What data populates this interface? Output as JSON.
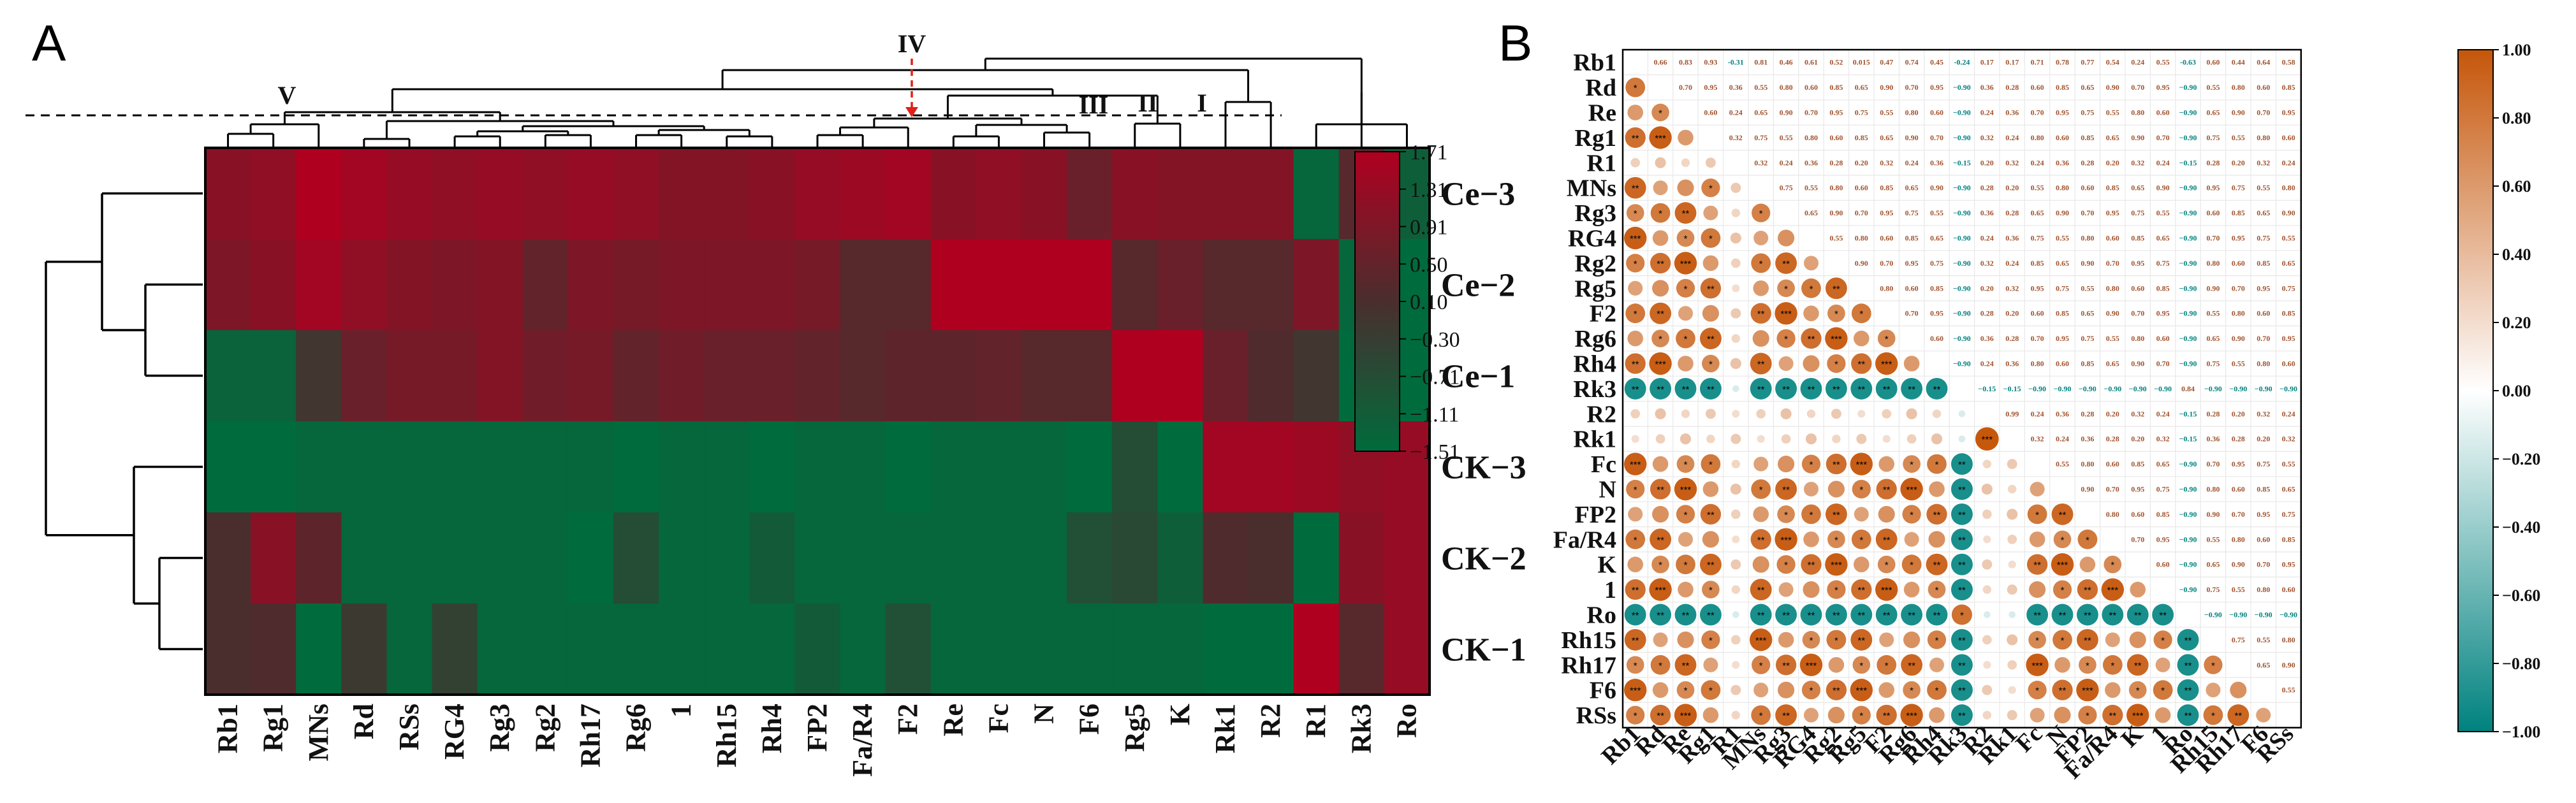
{
  "panels": {
    "a": "A",
    "b": "B"
  },
  "chart_data": [
    {
      "type": "heatmap",
      "panel": "A",
      "rows": [
        "Ce−3",
        "Ce−2",
        "Ce−1",
        "CK−3",
        "CK−2",
        "CK−1"
      ],
      "columns": [
        "Rb1",
        "Rg1",
        "MNs",
        "Rd",
        "RSs",
        "RG4",
        "Rg3",
        "Rg2",
        "Rh17",
        "Rg6",
        "1",
        "Rh15",
        "Rh4",
        "FP2",
        "Fa/R4",
        "F2",
        "Re",
        "Fc",
        "N",
        "F6",
        "Rg5",
        "K",
        "Rk1",
        "R2",
        "R1",
        "Rk3",
        "Ro"
      ],
      "values": [
        [
          1.1,
          1.2,
          1.71,
          1.5,
          1.3,
          1.2,
          1.3,
          1.2,
          1.3,
          1.2,
          1.0,
          1.0,
          1.1,
          1.3,
          1.4,
          1.5,
          1.1,
          1.2,
          1.1,
          0.6,
          1.1,
          1.0,
          1.0,
          1.0,
          -1.4,
          0.3,
          -1.2
        ],
        [
          0.9,
          1.1,
          1.5,
          1.2,
          1.0,
          0.9,
          1.0,
          0.5,
          0.9,
          0.8,
          0.9,
          0.9,
          0.9,
          0.8,
          0.3,
          0.3,
          1.71,
          1.71,
          1.71,
          1.71,
          0.3,
          0.6,
          0.3,
          0.3,
          0.9,
          -1.4,
          -1.5
        ],
        [
          -1.3,
          -1.3,
          -0.1,
          0.6,
          0.8,
          0.8,
          1.0,
          0.7,
          0.8,
          0.5,
          0.7,
          0.6,
          0.6,
          0.5,
          0.3,
          0.4,
          0.4,
          0.5,
          0.3,
          0.3,
          1.71,
          1.71,
          0.6,
          0.2,
          -0.1,
          -1.5,
          -1.5
        ],
        [
          -1.5,
          -1.5,
          -1.4,
          -1.4,
          -1.4,
          -1.4,
          -1.4,
          -1.4,
          -1.4,
          -1.5,
          -1.4,
          -1.4,
          -1.5,
          -1.4,
          -1.4,
          -1.5,
          -1.4,
          -1.4,
          -1.4,
          -1.5,
          -0.7,
          -1.5,
          1.5,
          1.5,
          1.4,
          1.2,
          1.3
        ],
        [
          0.1,
          1.1,
          0.4,
          -1.4,
          -1.4,
          -1.4,
          -1.4,
          -1.4,
          -1.5,
          -0.7,
          -1.4,
          -1.4,
          -1.1,
          -1.4,
          -1.4,
          -1.4,
          -1.4,
          -1.4,
          -1.4,
          -0.8,
          -0.6,
          -1.2,
          0.2,
          0.1,
          -1.5,
          1.1,
          1.3
        ],
        [
          0.1,
          0.2,
          -1.5,
          -0.2,
          -1.4,
          -0.4,
          -1.4,
          -1.4,
          -1.4,
          -1.4,
          -1.4,
          -1.4,
          -1.4,
          -1.1,
          -1.4,
          -0.8,
          -1.4,
          -1.4,
          -1.4,
          -1.4,
          -1.4,
          -1.4,
          -1.5,
          -1.5,
          1.71,
          0.3,
          1.3
        ]
      ],
      "color_scale": {
        "min": -1.51,
        "max": 1.71,
        "low_color": "#006b3c",
        "mid_color": "#4a2e2e",
        "high_color": "#b00020"
      },
      "colorbar_ticks": [
        "1.71",
        "1.31",
        "0.91",
        "0.50",
        "0.10",
        "−0.30",
        "−0.71",
        "−1.11",
        "−1.51"
      ],
      "cluster_labels": [
        "V",
        "IV",
        "III",
        "II",
        "I"
      ]
    },
    {
      "type": "heatmap",
      "panel": "B",
      "variables": [
        "Rb1",
        "Rd",
        "Re",
        "Rg1",
        "R1",
        "MNs",
        "Rg3",
        "RG4",
        "Rg2",
        "Rg5",
        "F2",
        "Rg6",
        "Rh4",
        "Rk3",
        "R2",
        "Rk1",
        "Fc",
        "N",
        "FP2",
        "Fa/R4",
        "K",
        "1",
        "Ro",
        "Rh15",
        "Rh17",
        "F6",
        "RSs"
      ],
      "upper_triangle_printed_coefficients_row1": [
        "0.66",
        "0.83",
        "0.93",
        "-0.31",
        "0.81",
        "0.46",
        "0.61",
        "0.52",
        "0.015",
        "0.47",
        "0.74",
        "0.45",
        "-0.24",
        "0.17",
        "0.17",
        "0.71",
        "0.78",
        "0.77",
        "0.54",
        "0.24",
        "0.55",
        "-0.63",
        "0.60",
        "0.44",
        "0.64",
        "0.58"
      ],
      "color_scale": {
        "min": -1.0,
        "max": 1.0,
        "low_color": "#00827f",
        "mid_color": "#ffffff",
        "high_color": "#c5560a"
      },
      "colorbar_ticks": [
        "1.00",
        "0.80",
        "0.60",
        "0.40",
        "0.20",
        "0.00",
        "−0.20",
        "−0.40",
        "−0.60",
        "−0.80",
        "−1.00"
      ],
      "significance_marks": [
        "*",
        "**",
        "***"
      ]
    }
  ]
}
